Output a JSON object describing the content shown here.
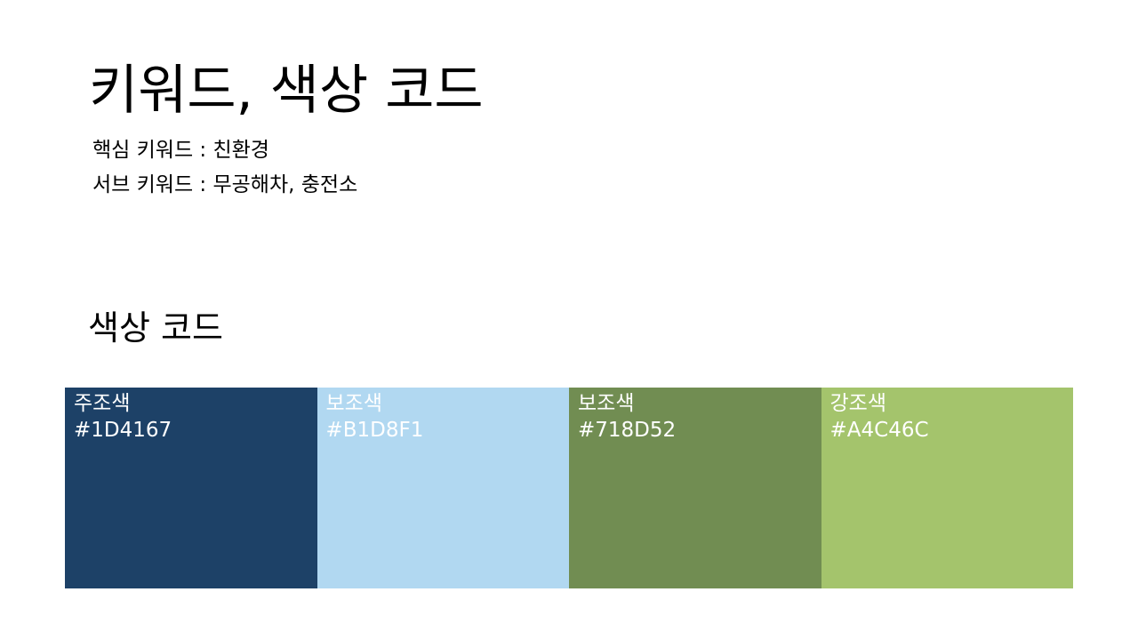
{
  "title": "키워드, 색상 코드",
  "keywords": {
    "main": "핵심 키워드 : 친환경",
    "sub": "서브 키워드 : 무공해차, 충전소"
  },
  "palette": {
    "heading": "색상 코드",
    "swatches": [
      {
        "name": "주조색",
        "code": "#1D4167",
        "color": "#1D4167"
      },
      {
        "name": "보조색",
        "code": "#B1D8F1",
        "color": "#B1D8F1"
      },
      {
        "name": "보조색",
        "code": "#718D52",
        "color": "#718D52"
      },
      {
        "name": "강조색",
        "code": "#A4C46C",
        "color": "#A4C46C"
      }
    ]
  }
}
